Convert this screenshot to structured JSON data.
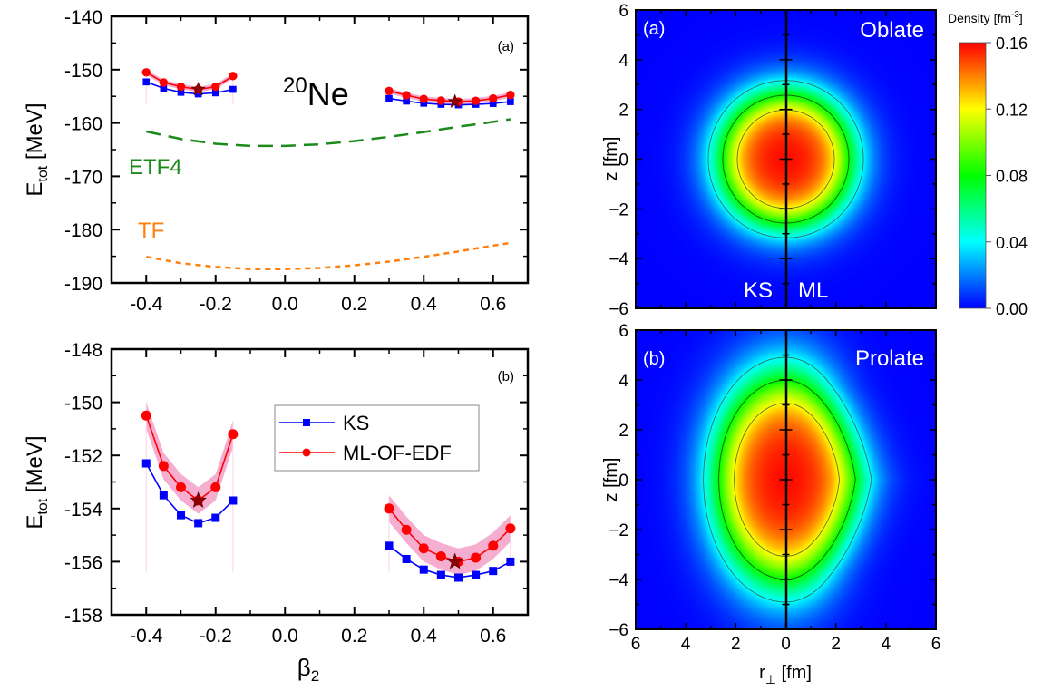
{
  "chart_data": [
    {
      "id": "panel-a-left",
      "type": "line",
      "panel_label": "(a)",
      "annotation": {
        "mass": "20",
        "element": "Ne"
      },
      "xlabel": "β",
      "xlabel_sub": "2",
      "ylabel": "E",
      "ylabel_sub": "tot",
      "ylabel_unit": " [MeV]",
      "xlim": [
        -0.5,
        0.7
      ],
      "ylim": [
        -190,
        -140
      ],
      "xticks": [
        -0.4,
        -0.2,
        0.0,
        0.2,
        0.4,
        0.6
      ],
      "xtick_labels": [
        "-0.4",
        "-0.2",
        "0.0",
        "0.2",
        "0.4",
        "0.6"
      ],
      "yticks": [
        -190,
        -180,
        -170,
        -160,
        -150,
        -140
      ],
      "ytick_labels": [
        "-190",
        "-180",
        "-170",
        "-160",
        "-150",
        "-140"
      ],
      "series": [
        {
          "name": "ETF4",
          "style": "dashed",
          "color": "#1a8a1a",
          "x": [
            -0.4,
            -0.3,
            -0.2,
            -0.1,
            0.0,
            0.1,
            0.2,
            0.3,
            0.4,
            0.5,
            0.6,
            0.65
          ],
          "y": [
            -161.6,
            -163.0,
            -163.9,
            -164.3,
            -164.3,
            -164.0,
            -163.4,
            -162.6,
            -161.7,
            -160.7,
            -159.8,
            -159.3
          ]
        },
        {
          "name": "TF",
          "style": "dotted",
          "color": "#ff7f0e",
          "x": [
            -0.4,
            -0.3,
            -0.2,
            -0.1,
            0.0,
            0.1,
            0.2,
            0.3,
            0.4,
            0.5,
            0.6,
            0.65
          ],
          "y": [
            -185.1,
            -186.3,
            -187.0,
            -187.4,
            -187.4,
            -187.2,
            -186.7,
            -186.0,
            -185.1,
            -184.1,
            -183.0,
            -182.5
          ]
        }
      ],
      "series_labels": [
        {
          "text": "ETF4",
          "color": "#1a8a1a"
        },
        {
          "text": "TF",
          "color": "#ff7f0e"
        }
      ]
    },
    {
      "id": "panel-b-left",
      "type": "line",
      "panel_label": "(b)",
      "xlabel": "β",
      "xlabel_sub": "2",
      "ylabel": "E",
      "ylabel_sub": "tot",
      "ylabel_unit": " [MeV]",
      "xlim": [
        -0.5,
        0.7
      ],
      "ylim": [
        -158,
        -148
      ],
      "xticks": [
        -0.4,
        -0.2,
        0.0,
        0.2,
        0.4,
        0.6
      ],
      "xtick_labels": [
        "-0.4",
        "-0.2",
        "0.0",
        "0.2",
        "0.4",
        "0.6"
      ],
      "yticks": [
        -158,
        -156,
        -154,
        -152,
        -150,
        -148
      ],
      "ytick_labels": [
        "-158",
        "-156",
        "-154",
        "-152",
        "-150",
        "-148"
      ],
      "legend": {
        "position": "upper-center",
        "entries": [
          "KS",
          "ML-OF-EDF"
        ]
      },
      "series": [
        {
          "name": "KS",
          "color": "#0000ff",
          "marker": "square",
          "branches": [
            {
              "x": [
                -0.4,
                -0.35,
                -0.3,
                -0.25,
                -0.2,
                -0.15
              ],
              "y": [
                -152.3,
                -153.5,
                -154.25,
                -154.55,
                -154.35,
                -153.7
              ]
            },
            {
              "x": [
                0.3,
                0.35,
                0.4,
                0.45,
                0.5,
                0.55,
                0.6,
                0.65
              ],
              "y": [
                -155.4,
                -155.9,
                -156.3,
                -156.5,
                -156.6,
                -156.5,
                -156.35,
                -156.0
              ]
            }
          ]
        },
        {
          "name": "ML-OF-EDF",
          "color": "#ff0000",
          "marker": "circle",
          "band_color": "#f4a0c8",
          "band_halfwidth": 0.5,
          "branches": [
            {
              "x": [
                -0.4,
                -0.35,
                -0.3,
                -0.25,
                -0.2,
                -0.15
              ],
              "y": [
                -150.5,
                -152.4,
                -153.2,
                -153.7,
                -153.2,
                -151.2
              ]
            },
            {
              "x": [
                0.3,
                0.35,
                0.4,
                0.45,
                0.5,
                0.55,
                0.6,
                0.65
              ],
              "y": [
                -154.0,
                -154.8,
                -155.5,
                -155.8,
                -156.0,
                -155.85,
                -155.4,
                -154.75
              ]
            }
          ]
        }
      ],
      "minima": [
        {
          "x": -0.25,
          "y": -153.7,
          "marker": "star",
          "color": "#8b0000"
        },
        {
          "x": 0.49,
          "y": -156.0,
          "marker": "star",
          "color": "#8b0000"
        }
      ]
    },
    {
      "id": "density-oblate",
      "type": "heatmap",
      "panel_label": "(a)",
      "shape_label": "Oblate",
      "left_label": "KS",
      "right_label": "ML",
      "xlabel": "r",
      "xlabel_sub": "⊥",
      "xlabel_unit": " [fm]",
      "ylabel": "z [fm]",
      "xlim": [
        -6,
        6
      ],
      "ylim": [
        -6,
        6
      ],
      "xtick_labels": [
        "6",
        "4",
        "2",
        "0",
        "2",
        "4",
        "6"
      ],
      "ytick_labels": [
        "−6",
        "−4",
        "−2",
        "0",
        "2",
        "4",
        "6"
      ],
      "ytick_labels_top": [
        "-6",
        "-4",
        "-2",
        "0",
        "2",
        "4",
        "6"
      ],
      "shape": {
        "r_radius": 2.4,
        "z_radius": 2.45,
        "central_density": 0.16
      },
      "contours": [
        0.04,
        0.08,
        0.12
      ]
    },
    {
      "id": "density-prolate",
      "type": "heatmap",
      "panel_label": "(b)",
      "shape_label": "Prolate",
      "xlabel": "r",
      "xlabel_sub": "⊥",
      "xlabel_unit": " [fm]",
      "ylabel": "z [fm]",
      "xlim": [
        -6,
        6
      ],
      "ylim": [
        -6,
        6
      ],
      "xtick_labels": [
        "6",
        "4",
        "2",
        "0",
        "2",
        "4",
        "6"
      ],
      "ytick_labels": [
        "−6",
        "−4",
        "−2",
        "0",
        "2",
        "4",
        "6"
      ],
      "shape": {
        "r_radius": 2.55,
        "z_radius": 3.8,
        "central_density": 0.16
      },
      "contours": [
        0.04,
        0.08,
        0.12
      ]
    },
    {
      "id": "colorbar",
      "type": "colorbar",
      "title": "Density [fm",
      "title_sup": "-3",
      "title_end": "]",
      "range": [
        0.0,
        0.16
      ],
      "tick_labels": [
        "0.00",
        "0.04",
        "0.08",
        "0.12",
        "0.16"
      ],
      "ticks": [
        0.0,
        0.04,
        0.08,
        0.12,
        0.16
      ],
      "colormap": [
        "#0000ff",
        "#00ffff",
        "#00ff00",
        "#ffff00",
        "#ff0000"
      ]
    }
  ]
}
